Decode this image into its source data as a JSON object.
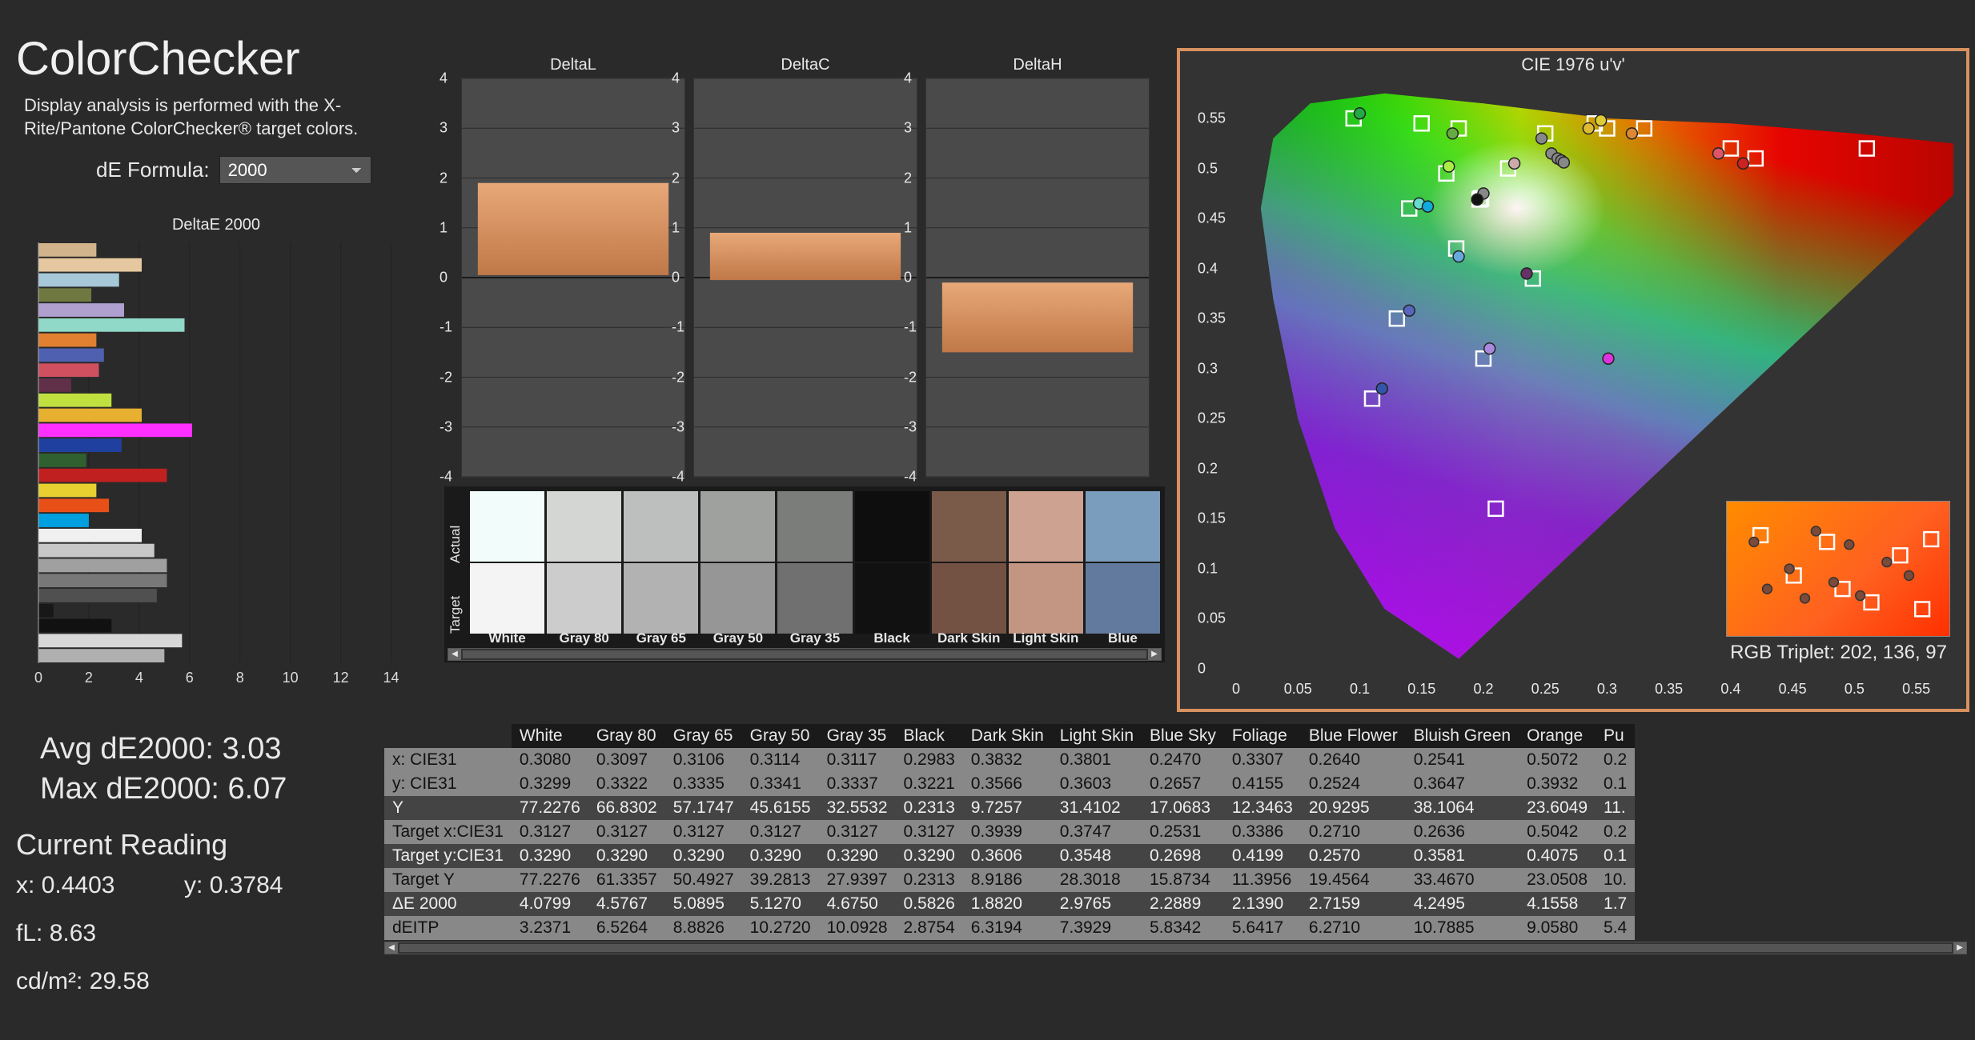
{
  "title": "ColorChecker",
  "subtitle": "Display analysis is performed with the X-Rite/Pantone ColorChecker® target colors.",
  "formula": {
    "label": "dE Formula:",
    "value": "2000"
  },
  "deltaE_chart": {
    "title": "DeltaE 2000",
    "xmax": 15,
    "xticks": [
      0,
      2,
      4,
      6,
      8,
      10,
      12,
      14
    ],
    "bars": [
      {
        "c": "#d2b48c",
        "v": 2.3
      },
      {
        "c": "#e6c8a0",
        "v": 4.1
      },
      {
        "c": "#a6c8d8",
        "v": 3.2
      },
      {
        "c": "#6f7840",
        "v": 2.1
      },
      {
        "c": "#b0a0d0",
        "v": 3.4
      },
      {
        "c": "#90d8c8",
        "v": 5.8
      },
      {
        "c": "#e08030",
        "v": 2.3
      },
      {
        "c": "#5060b0",
        "v": 2.6
      },
      {
        "c": "#d05060",
        "v": 2.4
      },
      {
        "c": "#603048",
        "v": 1.3
      },
      {
        "c": "#c0e040",
        "v": 2.9
      },
      {
        "c": "#e8b030",
        "v": 4.1
      },
      {
        "c": "#ff30ff",
        "v": 6.1
      },
      {
        "c": "#2040a0",
        "v": 3.3
      },
      {
        "c": "#306030",
        "v": 1.9
      },
      {
        "c": "#c02020",
        "v": 5.1
      },
      {
        "c": "#e8d030",
        "v": 2.3
      },
      {
        "c": "#e85018",
        "v": 2.8
      },
      {
        "c": "#00a0e0",
        "v": 2.0
      },
      {
        "c": "#f0f0f0",
        "v": 4.1
      },
      {
        "c": "#c8c8c8",
        "v": 4.6
      },
      {
        "c": "#a0a0a0",
        "v": 5.1
      },
      {
        "c": "#787878",
        "v": 5.1
      },
      {
        "c": "#505050",
        "v": 4.7
      },
      {
        "c": "#181818",
        "v": 0.6
      },
      {
        "c": "#111111",
        "v": 2.9
      },
      {
        "c": "#d8d8d8",
        "v": 5.7
      },
      {
        "c": "#b0b0b0",
        "v": 5.0
      }
    ]
  },
  "mini_charts": [
    {
      "title": "DeltaL",
      "y_top": 1.9,
      "y_bot": 0.05,
      "color": "#d89060"
    },
    {
      "title": "DeltaC",
      "y_top": 0.9,
      "y_bot": -0.05,
      "color": "#d89060"
    },
    {
      "title": "DeltaH",
      "y_top": -0.1,
      "y_bot": -1.5,
      "color": "#d89060"
    }
  ],
  "mini_yticks": [
    4,
    3,
    2,
    1,
    0,
    -1,
    -2,
    -3,
    -4
  ],
  "swatches": {
    "top_label": "Actual",
    "bottom_label": "Target",
    "items": [
      {
        "name": "White",
        "actual": "#f2fdfb",
        "target": "#f4f4f4"
      },
      {
        "name": "Gray 80",
        "actual": "#d4d6d4",
        "target": "#cccccc"
      },
      {
        "name": "Gray 65",
        "actual": "#bdbfbe",
        "target": "#b2b2b2"
      },
      {
        "name": "Gray 50",
        "actual": "#9fa19f",
        "target": "#969696"
      },
      {
        "name": "Gray 35",
        "actual": "#7b7d7b",
        "target": "#707070"
      },
      {
        "name": "Black",
        "actual": "#0e0e0e",
        "target": "#111111"
      },
      {
        "name": "Dark Skin",
        "actual": "#7a5a49",
        "target": "#735244"
      },
      {
        "name": "Light Skin",
        "actual": "#cda291",
        "target": "#c29682"
      },
      {
        "name": "Blue",
        "actual": "#7a9cbd",
        "target": "#627a9d"
      }
    ]
  },
  "stats": {
    "avg_label": "Avg dE2000:",
    "avg": "3.03",
    "max_label": "Max dE2000:",
    "max": "6.07",
    "cur_heading": "Current Reading",
    "x_label": "x:",
    "x": "0.4403",
    "y_label": "y:",
    "y": "0.3784",
    "fl_label": "fL:",
    "fl": "8.63",
    "cd_label": "cd/m²:",
    "cd": "29.58"
  },
  "table": {
    "columns": [
      "",
      "White",
      "Gray 80",
      "Gray 65",
      "Gray 50",
      "Gray 35",
      "Black",
      "Dark Skin",
      "Light Skin",
      "Blue Sky",
      "Foliage",
      "Blue Flower",
      "Bluish Green",
      "Orange",
      "Pu"
    ],
    "rows": [
      {
        "s": "light",
        "label": "x: CIE31",
        "v": [
          "0.3080",
          "0.3097",
          "0.3106",
          "0.3114",
          "0.3117",
          "0.2983",
          "0.3832",
          "0.3801",
          "0.2470",
          "0.3307",
          "0.2640",
          "0.2541",
          "0.5072",
          "0.2"
        ]
      },
      {
        "s": "light",
        "label": "y: CIE31",
        "v": [
          "0.3299",
          "0.3322",
          "0.3335",
          "0.3341",
          "0.3337",
          "0.3221",
          "0.3566",
          "0.3603",
          "0.2657",
          "0.4155",
          "0.2524",
          "0.3647",
          "0.3932",
          "0.1"
        ]
      },
      {
        "s": "dark",
        "label": "Y",
        "v": [
          "77.2276",
          "66.8302",
          "57.1747",
          "45.6155",
          "32.5532",
          "0.2313",
          "9.7257",
          "31.4102",
          "17.0683",
          "12.3463",
          "20.9295",
          "38.1064",
          "23.6049",
          "11."
        ]
      },
      {
        "s": "light",
        "label": "Target x:CIE31",
        "v": [
          "0.3127",
          "0.3127",
          "0.3127",
          "0.3127",
          "0.3127",
          "0.3127",
          "0.3939",
          "0.3747",
          "0.2531",
          "0.3386",
          "0.2710",
          "0.2636",
          "0.5042",
          "0.2"
        ]
      },
      {
        "s": "dark",
        "label": "Target y:CIE31",
        "v": [
          "0.3290",
          "0.3290",
          "0.3290",
          "0.3290",
          "0.3290",
          "0.3290",
          "0.3606",
          "0.3548",
          "0.2698",
          "0.4199",
          "0.2570",
          "0.3581",
          "0.4075",
          "0.1"
        ]
      },
      {
        "s": "light",
        "label": "Target Y",
        "v": [
          "77.2276",
          "61.3357",
          "50.4927",
          "39.2813",
          "27.9397",
          "0.2313",
          "8.9186",
          "28.3018",
          "15.8734",
          "11.3956",
          "19.4564",
          "33.4670",
          "23.0508",
          "10."
        ]
      },
      {
        "s": "dark",
        "label": "ΔE 2000",
        "v": [
          "4.0799",
          "4.5767",
          "5.0895",
          "5.1270",
          "4.6750",
          "0.5826",
          "1.8820",
          "2.9765",
          "2.2889",
          "2.1390",
          "2.7159",
          "4.2495",
          "4.1558",
          "1.7"
        ]
      },
      {
        "s": "light",
        "label": "dEITP",
        "v": [
          "3.2371",
          "6.5264",
          "8.8826",
          "10.2720",
          "10.0928",
          "2.8754",
          "6.3194",
          "7.3929",
          "5.8342",
          "5.6417",
          "6.2710",
          "10.7885",
          "9.0580",
          "5.4"
        ]
      }
    ]
  },
  "cie": {
    "title": "CIE 1976 u'v'",
    "rgb_label": "RGB Triplet:",
    "rgb": "202, 136, 97",
    "xticks": [
      0,
      0.05,
      0.1,
      0.15,
      0.2,
      0.25,
      0.3,
      0.35,
      0.4,
      0.45,
      0.5,
      0.55
    ],
    "yticks": [
      0,
      0.05,
      0.1,
      0.15,
      0.2,
      0.25,
      0.3,
      0.35,
      0.4,
      0.45,
      0.5,
      0.55
    ],
    "xmax": 0.58,
    "ymax": 0.59,
    "locus": [
      [
        0.18,
        0.01
      ],
      [
        0.12,
        0.06
      ],
      [
        0.08,
        0.14
      ],
      [
        0.05,
        0.25
      ],
      [
        0.03,
        0.37
      ],
      [
        0.02,
        0.46
      ],
      [
        0.03,
        0.53
      ],
      [
        0.06,
        0.565
      ],
      [
        0.12,
        0.575
      ],
      [
        0.2,
        0.565
      ],
      [
        0.3,
        0.55
      ],
      [
        0.4,
        0.545
      ],
      [
        0.5,
        0.535
      ],
      [
        0.62,
        0.52
      ]
    ],
    "targets": [
      [
        0.197,
        0.469
      ],
      [
        0.22,
        0.5
      ],
      [
        0.178,
        0.42
      ],
      [
        0.18,
        0.54
      ],
      [
        0.2,
        0.31
      ],
      [
        0.14,
        0.46
      ],
      [
        0.33,
        0.54
      ],
      [
        0.13,
        0.35
      ],
      [
        0.4,
        0.52
      ],
      [
        0.24,
        0.39
      ],
      [
        0.17,
        0.495
      ],
      [
        0.29,
        0.545
      ],
      [
        0.11,
        0.27
      ],
      [
        0.095,
        0.55
      ],
      [
        0.42,
        0.51
      ],
      [
        0.3,
        0.54
      ],
      [
        0.15,
        0.545
      ],
      [
        0.25,
        0.535
      ],
      [
        0.21,
        0.16
      ],
      [
        0.198,
        0.47
      ],
      [
        0.198,
        0.47
      ],
      [
        0.198,
        0.47
      ],
      [
        0.198,
        0.47
      ],
      [
        0.198,
        0.47
      ],
      [
        0.51,
        0.52
      ]
    ],
    "measured": [
      {
        "u": 0.2,
        "v": 0.475,
        "c": "#888"
      },
      {
        "u": 0.225,
        "v": 0.505,
        "c": "#caa"
      },
      {
        "u": 0.18,
        "v": 0.412,
        "c": "#6ad"
      },
      {
        "u": 0.175,
        "v": 0.535,
        "c": "#6a4"
      },
      {
        "u": 0.205,
        "v": 0.32,
        "c": "#a8d"
      },
      {
        "u": 0.148,
        "v": 0.465,
        "c": "#6dc"
      },
      {
        "u": 0.32,
        "v": 0.535,
        "c": "#d83"
      },
      {
        "u": 0.14,
        "v": 0.358,
        "c": "#56b"
      },
      {
        "u": 0.39,
        "v": 0.515,
        "c": "#d56"
      },
      {
        "u": 0.235,
        "v": 0.395,
        "c": "#636"
      },
      {
        "u": 0.172,
        "v": 0.502,
        "c": "#ae4"
      },
      {
        "u": 0.285,
        "v": 0.54,
        "c": "#db3"
      },
      {
        "u": 0.118,
        "v": 0.28,
        "c": "#35a"
      },
      {
        "u": 0.1,
        "v": 0.555,
        "c": "#2a4"
      },
      {
        "u": 0.41,
        "v": 0.505,
        "c": "#c22"
      },
      {
        "u": 0.295,
        "v": 0.548,
        "c": "#dc3"
      },
      {
        "u": 0.301,
        "v": 0.31,
        "c": "#d3d"
      },
      {
        "u": 0.155,
        "v": 0.462,
        "c": "#1ad"
      },
      {
        "u": 0.247,
        "v": 0.53,
        "c": "#888"
      },
      {
        "u": 0.255,
        "v": 0.515,
        "c": "#888"
      },
      {
        "u": 0.26,
        "v": 0.51,
        "c": "#888"
      },
      {
        "u": 0.263,
        "v": 0.508,
        "c": "#888"
      },
      {
        "u": 0.265,
        "v": 0.506,
        "c": "#888"
      },
      {
        "u": 0.195,
        "v": 0.469,
        "c": "#ddd"
      },
      {
        "u": 0.195,
        "v": 0.469,
        "c": "#111"
      }
    ],
    "inset_targets": [
      [
        0.15,
        0.75
      ],
      [
        0.3,
        0.45
      ],
      [
        0.45,
        0.7
      ],
      [
        0.52,
        0.35
      ],
      [
        0.65,
        0.25
      ],
      [
        0.78,
        0.6
      ],
      [
        0.88,
        0.2
      ],
      [
        0.92,
        0.72
      ]
    ],
    "inset_measured": [
      [
        0.12,
        0.7
      ],
      [
        0.28,
        0.5
      ],
      [
        0.4,
        0.78
      ],
      [
        0.48,
        0.4
      ],
      [
        0.6,
        0.3
      ],
      [
        0.72,
        0.55
      ],
      [
        0.35,
        0.28
      ],
      [
        0.18,
        0.35
      ],
      [
        0.55,
        0.68
      ],
      [
        0.82,
        0.45
      ]
    ]
  }
}
